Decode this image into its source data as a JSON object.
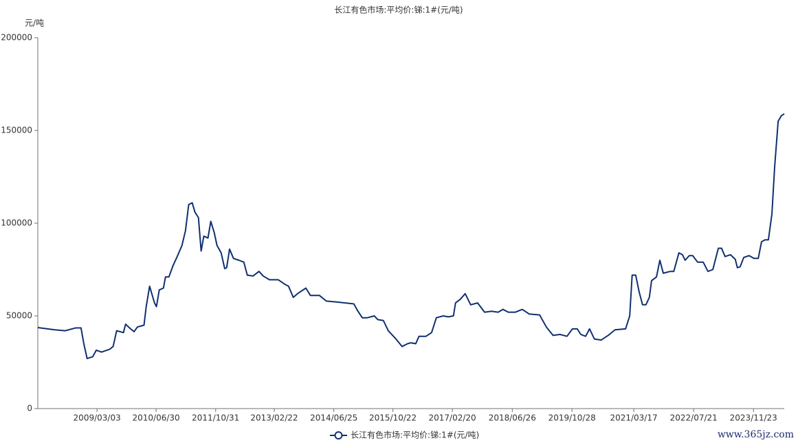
{
  "chart_data": {
    "type": "line",
    "title": "长江有色市场:平均价:锑:1#(元/吨)",
    "y_unit": "元/吨",
    "watermark": "www.365jz.com",
    "x": [
      "2007/11/04",
      "2008/03/22",
      "2008/06/15",
      "2008/09/08",
      "2008/10/23",
      "2008/11/15",
      "2008/12/12",
      "2009/01/27",
      "2009/02/25",
      "2009/04/09",
      "2009/06/15",
      "2009/07/13",
      "2009/08/11",
      "2009/10/06",
      "2009/10/23",
      "2009/12/03",
      "2010/01/01",
      "2010/01/28",
      "2010/03/23",
      "2010/04/10",
      "2010/05/08",
      "2010/06/17",
      "2010/07/03",
      "2010/07/26",
      "2010/08/29",
      "2010/09/15",
      "2010/10/13",
      "2010/11/15",
      "2010/12/20",
      "2011/01/28",
      "2011/02/26",
      "2011/03/24",
      "2011/04/22",
      "2011/05/14",
      "2011/06/12",
      "2011/07/04",
      "2011/07/26",
      "2011/08/29",
      "2011/09/21",
      "2011/10/19",
      "2011/11/11",
      "2011/12/15",
      "2012/01/13",
      "2012/01/29",
      "2012/02/22",
      "2012/03/25",
      "2012/05/09",
      "2012/06/18",
      "2012/07/16",
      "2012/09/01",
      "2012/10/20",
      "2012/11/24",
      "2013/01/14",
      "2013/03/26",
      "2013/05/21",
      "2013/06/19",
      "2013/07/28",
      "2013/09/01",
      "2013/11/08",
      "2013/12/16",
      "2014/02/28",
      "2014/04/24",
      "2014/07/17",
      "2014/12/06",
      "2015/01/04",
      "2015/02/13",
      "2015/03/27",
      "2015/05/23",
      "2015/06/20",
      "2015/08/05",
      "2015/09/14",
      "2015/11/10",
      "2016/01/05",
      "2016/02/19",
      "2016/03/17",
      "2016/04/26",
      "2016/05/23",
      "2016/07/19",
      "2016/09/03",
      "2016/10/12",
      "2016/12/08",
      "2017/01/17",
      "2017/03/01",
      "2017/03/18",
      "2017/04/27",
      "2017/06/05",
      "2017/07/20",
      "2017/09/15",
      "2017/11/11",
      "2018/01/06",
      "2018/03/02",
      "2018/04/11",
      "2018/05/25",
      "2018/07/21",
      "2018/09/16",
      "2018/11/12",
      "2019/02/05",
      "2019/04/01",
      "2019/05/26",
      "2019/07/22",
      "2019/09/17",
      "2019/11/01",
      "2019/12/10",
      "2020/01/08",
      "2020/02/17",
      "2020/03/20",
      "2020/04/29",
      "2020/06/24",
      "2020/08/20",
      "2020/10/15",
      "2021/01/09",
      "2021/02/12",
      "2021/03/04",
      "2021/04/02",
      "2021/04/30",
      "2021/05/28",
      "2021/06/25",
      "2021/07/23",
      "2021/08/10",
      "2021/09/19",
      "2021/10/17",
      "2021/11/14",
      "2022/01/10",
      "2022/02/08",
      "2022/03/22",
      "2022/04/20",
      "2022/05/12",
      "2022/06/15",
      "2022/07/13",
      "2022/08/22",
      "2022/10/07",
      "2022/11/15",
      "2022/12/25",
      "2023/02/08",
      "2023/03/06",
      "2023/04/04",
      "2023/05/18",
      "2023/06/27",
      "2023/07/14",
      "2023/08/06",
      "2023/09/04",
      "2023/10/18",
      "2023/11/27",
      "2024/01/01",
      "2024/01/28",
      "2024/02/26",
      "2024/03/24",
      "2024/04/22",
      "2024/05/14",
      "2024/06/12",
      "2024/07/09",
      "2024/08/01"
    ],
    "series": [
      {
        "name": "长江有色市场:平均价:锑:1#(元/吨)",
        "color": "#0f2f6f",
        "values": [
          43700,
          42500,
          42000,
          43500,
          43500,
          35000,
          27000,
          28000,
          31500,
          30500,
          32000,
          33500,
          42000,
          41000,
          45500,
          43000,
          41500,
          44000,
          45000,
          55000,
          66000,
          57000,
          55000,
          64000,
          65000,
          71000,
          71000,
          77000,
          82000,
          88000,
          96000,
          110000,
          111000,
          106000,
          103000,
          85000,
          93000,
          92000,
          101000,
          95000,
          88000,
          84000,
          75500,
          76000,
          86000,
          81000,
          80000,
          79000,
          72000,
          71500,
          74000,
          71500,
          69500,
          69500,
          67000,
          66000,
          60000,
          62000,
          65000,
          61000,
          61000,
          58000,
          57500,
          56500,
          53000,
          49000,
          49000,
          50000,
          48000,
          47500,
          42000,
          38000,
          33500,
          35000,
          35500,
          35000,
          39000,
          39000,
          41000,
          49000,
          50000,
          49500,
          50000,
          57000,
          59000,
          62000,
          56000,
          57000,
          52000,
          52500,
          52000,
          53500,
          52000,
          52000,
          53500,
          51000,
          50500,
          44000,
          39500,
          40000,
          39000,
          43000,
          43000,
          40000,
          39000,
          43000,
          37500,
          37000,
          39500,
          42500,
          43000,
          50000,
          72000,
          72000,
          63000,
          56000,
          56000,
          60000,
          69000,
          71000,
          80000,
          73000,
          74000,
          74000,
          84000,
          83000,
          80000,
          82500,
          82500,
          79000,
          79000,
          74000,
          75000,
          86500,
          86500,
          82000,
          83000,
          80500,
          76000,
          76500,
          81500,
          82500,
          81000,
          81000,
          90000,
          91000,
          91000,
          105000,
          130000,
          155000,
          158000,
          159000
        ]
      }
    ],
    "xlim": [
      "2007/11/04",
      "2024/08/01"
    ],
    "xticks": [
      "2009/03/03",
      "2010/06/30",
      "2011/10/31",
      "2013/02/22",
      "2014/06/25",
      "2015/10/22",
      "2017/02/20",
      "2018/06/26",
      "2019/10/28",
      "2021/03/17",
      "2022/07/21",
      "2023/11/23"
    ],
    "ylim": [
      0,
      200000
    ],
    "yticks": [
      0,
      50000,
      100000,
      150000,
      200000
    ],
    "grid": false,
    "legend": "bottom"
  }
}
